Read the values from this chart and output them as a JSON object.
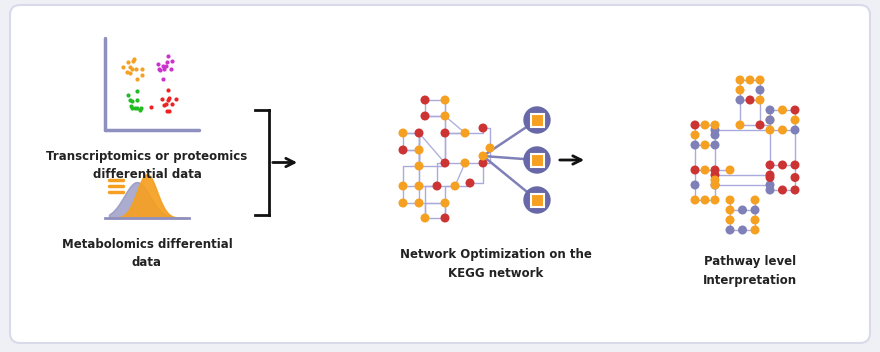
{
  "bg_color": "#eef0f6",
  "card_color": "#ffffff",
  "purple": "#8080c0",
  "orange": "#f5a020",
  "red": "#e03030",
  "green": "#22bb22",
  "magenta": "#cc44cc",
  "node_purple": "#8080b8",
  "node_orange": "#f5a020",
  "edge_color": "#aaaadd",
  "hub_color": "#6868a8",
  "text_color": "#222222",
  "label1": "Transcriptomics or proteomics\ndifferential data",
  "label2": "Metabolomics differential\ndata",
  "label3": "Network Optimization on the\nKEGG network",
  "label4": "Pathway level\nInterpretation",
  "font_size": 8.5
}
